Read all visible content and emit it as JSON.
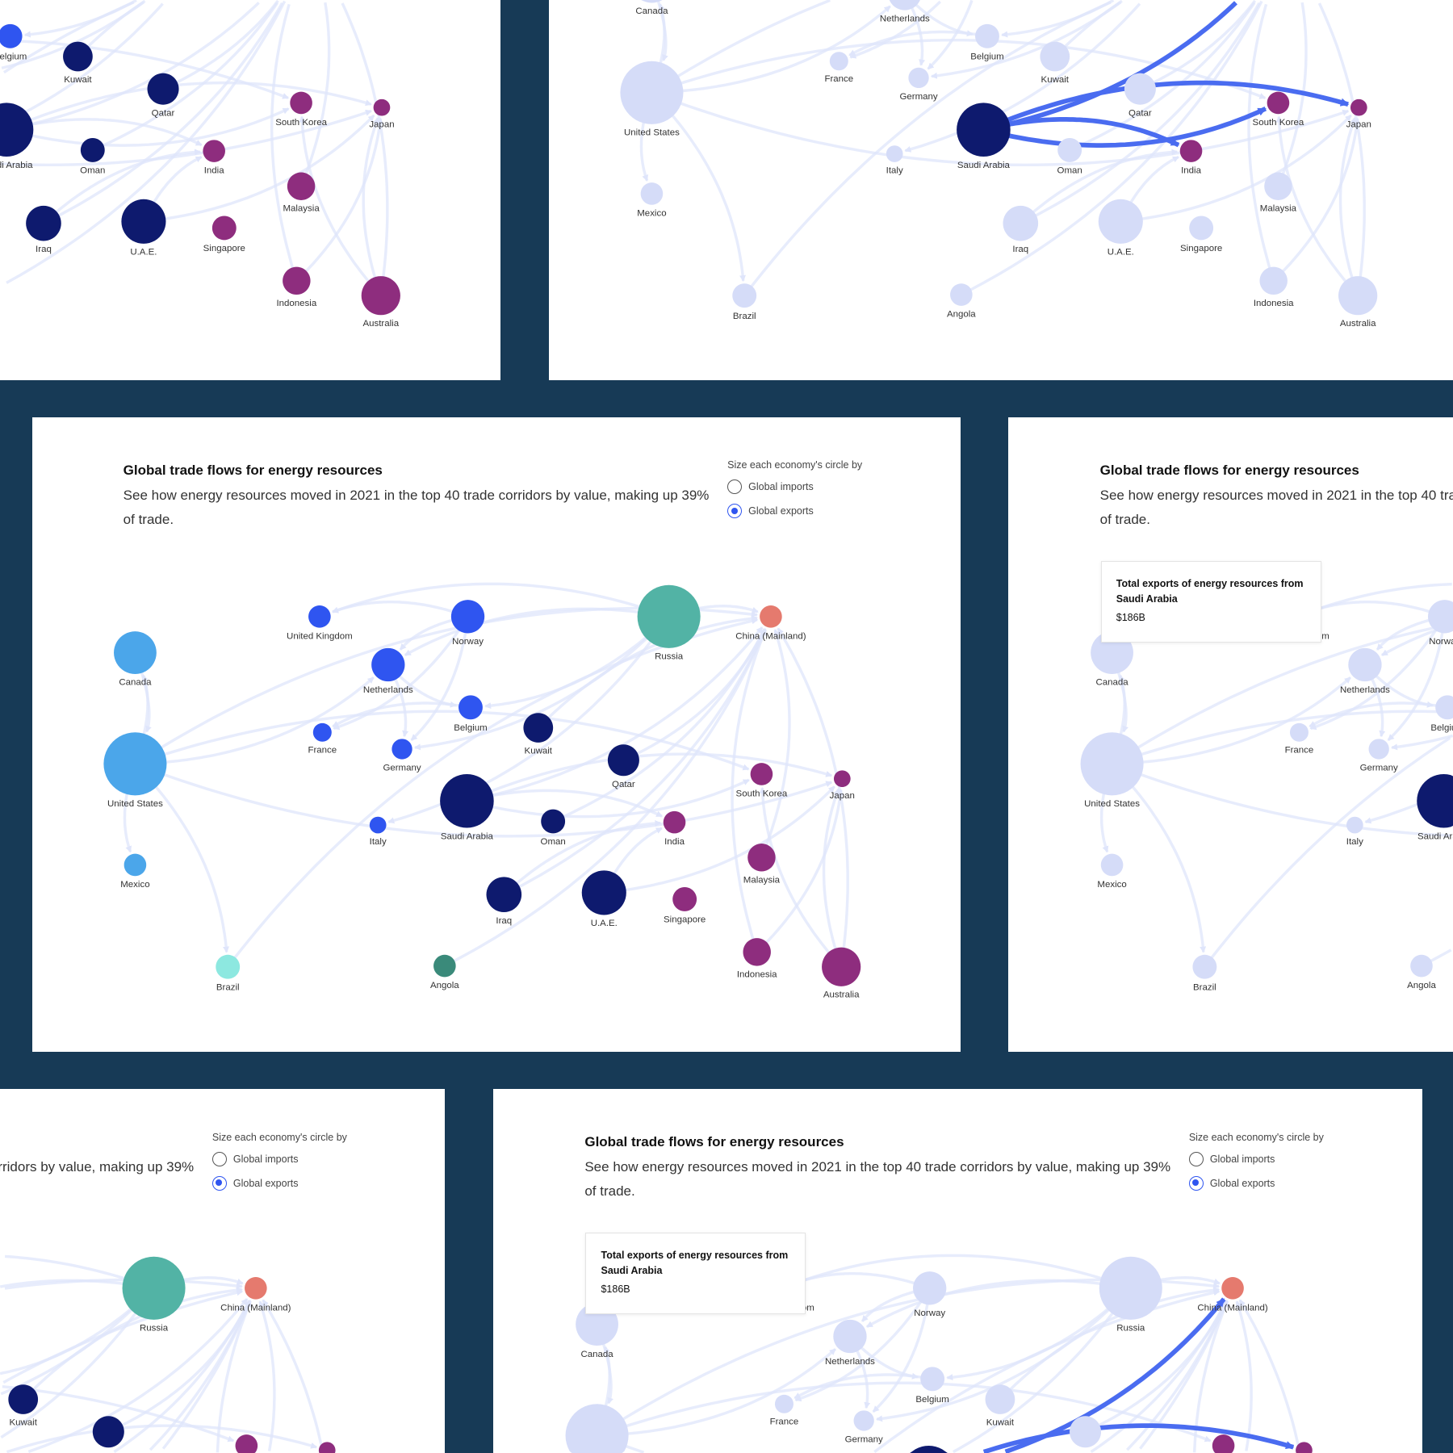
{
  "chart_data": {
    "type": "network",
    "title": "Global trade flows for energy resources",
    "subtitle": "See how energy resources moved in 2021 in the top 40 trade corridors by value, making up 39% of trade.",
    "nodes": [
      {
        "name": "United Kingdom",
        "color": "#2f55f0"
      },
      {
        "name": "Norway",
        "color": "#2f55f0"
      },
      {
        "name": "Russia",
        "color": "#52b3a5"
      },
      {
        "name": "China (Mainland)",
        "color": "#e57a6e"
      },
      {
        "name": "Canada",
        "color": "#4ba6ea"
      },
      {
        "name": "Netherlands",
        "color": "#2f55f0"
      },
      {
        "name": "Belgium",
        "color": "#2f55f0"
      },
      {
        "name": "France",
        "color": "#2f55f0"
      },
      {
        "name": "Germany",
        "color": "#2f55f0"
      },
      {
        "name": "Kuwait",
        "color": "#0e1a6e"
      },
      {
        "name": "Qatar",
        "color": "#0e1a6e"
      },
      {
        "name": "United States",
        "color": "#4ba6ea"
      },
      {
        "name": "South Korea",
        "color": "#8e2d7e"
      },
      {
        "name": "Japan",
        "color": "#8e2d7e"
      },
      {
        "name": "Saudi Arabia",
        "color": "#0e1a6e"
      },
      {
        "name": "Oman",
        "color": "#0e1a6e"
      },
      {
        "name": "Italy",
        "color": "#2f55f0"
      },
      {
        "name": "India",
        "color": "#8e2d7e"
      },
      {
        "name": "Mexico",
        "color": "#4ba6ea"
      },
      {
        "name": "Malaysia",
        "color": "#8e2d7e"
      },
      {
        "name": "Iraq",
        "color": "#0e1a6e"
      },
      {
        "name": "U.A.E.",
        "color": "#0e1a6e"
      },
      {
        "name": "Singapore",
        "color": "#8e2d7e"
      },
      {
        "name": "Brazil",
        "color": "#8de8e0"
      },
      {
        "name": "Angola",
        "color": "#3a8a7a"
      },
      {
        "name": "Indonesia",
        "color": "#8e2d7e"
      },
      {
        "name": "Australia",
        "color": "#8e2d7e"
      }
    ],
    "flows": [
      [
        "Canada",
        "United States"
      ],
      [
        "United States",
        "Mexico"
      ],
      [
        "United States",
        "Brazil"
      ],
      [
        "United States",
        "Canada"
      ],
      [
        "Russia",
        "China (Mainland)"
      ],
      [
        "Russia",
        "Netherlands"
      ],
      [
        "Russia",
        "Germany"
      ],
      [
        "Russia",
        "United Kingdom"
      ],
      [
        "Russia",
        "Belgium"
      ],
      [
        "Norway",
        "United Kingdom"
      ],
      [
        "Norway",
        "Germany"
      ],
      [
        "Norway",
        "Netherlands"
      ],
      [
        "Norway",
        "France"
      ],
      [
        "Netherlands",
        "Belgium"
      ],
      [
        "Netherlands",
        "Germany"
      ],
      [
        "Belgium",
        "France"
      ],
      [
        "United States",
        "South Korea"
      ],
      [
        "United States",
        "Japan"
      ],
      [
        "United States",
        "China (Mainland)"
      ],
      [
        "United States",
        "Netherlands"
      ],
      [
        "Australia",
        "Japan"
      ],
      [
        "Australia",
        "China (Mainland)"
      ],
      [
        "Australia",
        "South Korea"
      ],
      [
        "Saudi Arabia",
        "China (Mainland)"
      ],
      [
        "Saudi Arabia",
        "Japan"
      ],
      [
        "Saudi Arabia",
        "South Korea"
      ],
      [
        "Saudi Arabia",
        "India"
      ],
      [
        "Iraq",
        "China (Mainland)"
      ],
      [
        "Iraq",
        "India"
      ],
      [
        "U.A.E.",
        "Japan"
      ],
      [
        "U.A.E.",
        "India"
      ],
      [
        "Qatar",
        "China (Mainland)"
      ],
      [
        "Kuwait",
        "China (Mainland)"
      ],
      [
        "Oman",
        "China (Mainland)"
      ],
      [
        "Indonesia",
        "China (Mainland)"
      ],
      [
        "Malaysia",
        "China (Mainland)"
      ],
      [
        "Brazil",
        "China (Mainland)"
      ],
      [
        "Angola",
        "China (Mainland)"
      ],
      [
        "Russia",
        "Italy"
      ],
      [
        "Indonesia",
        "Japan"
      ]
    ]
  },
  "controls": {
    "label": "Size each economy's circle by",
    "options": [
      "Global imports",
      "Global exports"
    ],
    "selected": "Global exports"
  },
  "highlight": {
    "node": "Saudi Arabia",
    "flows": [
      [
        "Saudi Arabia",
        "China (Mainland)"
      ],
      [
        "Saudi Arabia",
        "Japan"
      ],
      [
        "Saudi Arabia",
        "South Korea"
      ],
      [
        "Saudi Arabia",
        "India"
      ]
    ],
    "faded_color": "#d5dcf8",
    "flow_color": "#4a6cf0"
  },
  "tooltip": {
    "title": "Total exports of energy resources from Saudi Arabia",
    "value": "$186B"
  },
  "colors": {
    "background": "#173a56",
    "flow": "#dfe5fb",
    "panel": "#ffffff"
  }
}
